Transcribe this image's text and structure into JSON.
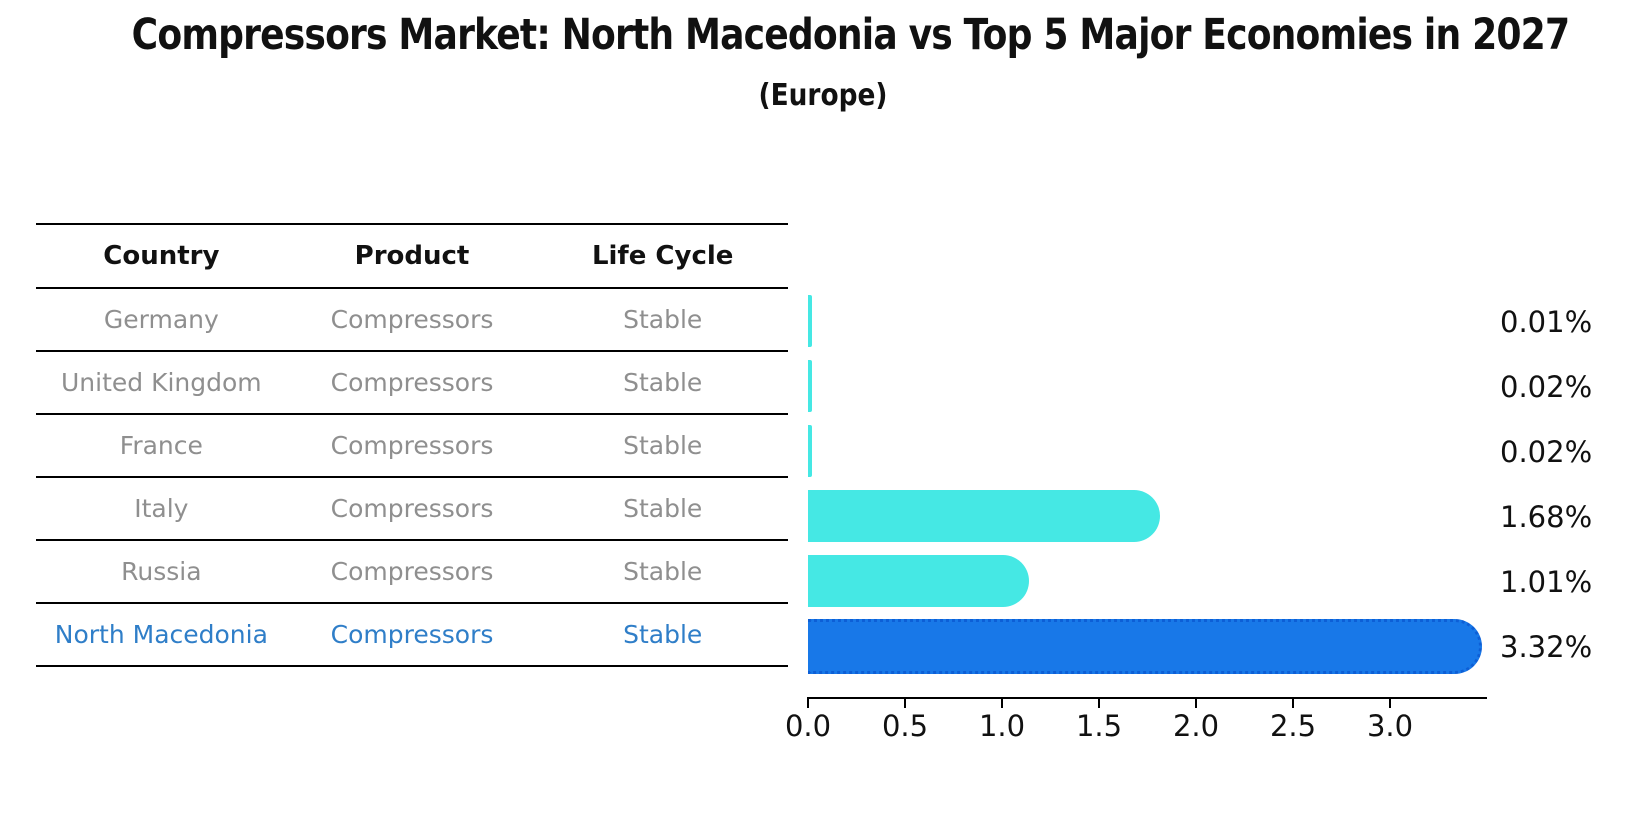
{
  "title": "Compressors Market: North Macedonia vs Top 5 Major Economies in 2027",
  "subtitle": "(Europe)",
  "table": {
    "headers": [
      "Country",
      "Product",
      "Life Cycle"
    ],
    "rows": [
      {
        "country": "Germany",
        "product": "Compressors",
        "life_cycle": "Stable",
        "highlight": false
      },
      {
        "country": "United Kingdom",
        "product": "Compressors",
        "life_cycle": "Stable",
        "highlight": false
      },
      {
        "country": "France",
        "product": "Compressors",
        "life_cycle": "Stable",
        "highlight": false
      },
      {
        "country": "Italy",
        "product": "Compressors",
        "life_cycle": "Stable",
        "highlight": false
      },
      {
        "country": "Russia",
        "product": "Compressors",
        "life_cycle": "Stable",
        "highlight": false
      },
      {
        "country": "North Macedonia",
        "product": "Compressors",
        "life_cycle": "Stable",
        "highlight": true
      }
    ]
  },
  "chart_data": {
    "type": "bar",
    "orientation": "horizontal",
    "title": "Compressors Market: North Macedonia vs Top 5 Major Economies in 2027",
    "subtitle": "(Europe)",
    "categories": [
      "Germany",
      "United Kingdom",
      "France",
      "Italy",
      "Russia",
      "North Macedonia"
    ],
    "values": [
      0.01,
      0.02,
      0.02,
      1.68,
      1.01,
      3.32
    ],
    "value_labels": [
      "0.01%",
      "0.02%",
      "0.02%",
      "1.68%",
      "1.01%",
      "3.32%"
    ],
    "xticks": [
      "0.0",
      "0.5",
      "1.0",
      "1.5",
      "2.0",
      "2.5",
      "3.0"
    ],
    "xlim": [
      0,
      3.45
    ],
    "grid": false,
    "legend": "none",
    "highlight_index": 5
  },
  "colors": {
    "bar_default": "#45e8e4",
    "bar_highlight": "#1878e8",
    "highlight_text": "#2f7ec8",
    "row_text": "#8f8f8f",
    "header_text": "#111111",
    "line": "#000000"
  }
}
